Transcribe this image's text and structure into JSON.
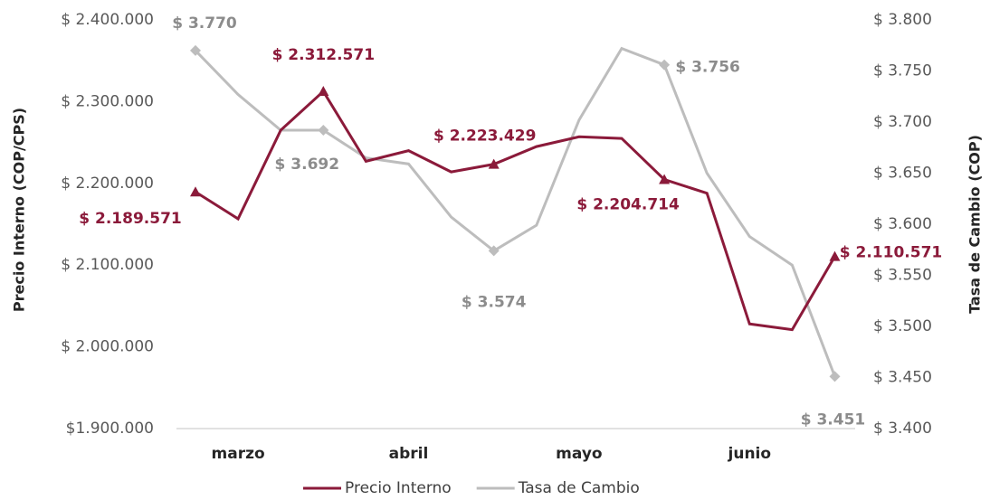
{
  "chart_data": {
    "type": "line",
    "categories": [
      null,
      "marzo",
      null,
      null,
      null,
      "abril",
      null,
      null,
      null,
      "mayo",
      null,
      null,
      null,
      "junio",
      null,
      null
    ],
    "series": [
      {
        "name": "Precio Interno",
        "color": "#8b1a3a",
        "axis": "y",
        "values": [
          2189571,
          2156600,
          2265000,
          2312571,
          2227000,
          2240000,
          2214000,
          2223429,
          2245000,
          2257000,
          2255000,
          2204714,
          2188000,
          2028000,
          2021000,
          2110571
        ],
        "value_labels": [
          "$ 2.189.571",
          null,
          null,
          "$ 2.312.571",
          null,
          null,
          null,
          "$ 2.223.429",
          null,
          null,
          null,
          "$ 2.204.714",
          null,
          null,
          null,
          "$ 2.110.571"
        ]
      },
      {
        "name": "Tasa de Cambio",
        "color": "#bdbdbd",
        "axis": "y2",
        "values": [
          3770,
          3727,
          3692,
          3692,
          3665,
          3659,
          3607,
          3574,
          3599,
          3702,
          3772,
          3756,
          3650,
          3588,
          3560,
          3451
        ],
        "value_labels": [
          "$ 3.770",
          null,
          null,
          "$ 3.692",
          null,
          null,
          null,
          "$ 3.574",
          null,
          null,
          null,
          "$ 3.756",
          null,
          null,
          null,
          "$ 3.451"
        ]
      }
    ],
    "ylabel": "Precio Interno (COP/CPS)",
    "y2label": "Tasa de Cambio (COP)",
    "ylim": [
      1900000,
      2400000
    ],
    "yticks": [
      {
        "value": 1900000,
        "label": "$1.900.000"
      },
      {
        "value": 2000000,
        "label": "$ 2.000.000"
      },
      {
        "value": 2100000,
        "label": "$ 2.100.000"
      },
      {
        "value": 2200000,
        "label": "$ 2.200.000"
      },
      {
        "value": 2300000,
        "label": "$ 2.300.000"
      },
      {
        "value": 2400000,
        "label": "$ 2.400.000"
      }
    ],
    "y2lim": [
      3400,
      3800
    ],
    "y2ticks": [
      {
        "value": 3400,
        "label": "$ 3.400"
      },
      {
        "value": 3450,
        "label": "$ 3.450"
      },
      {
        "value": 3500,
        "label": "$ 3.500"
      },
      {
        "value": 3550,
        "label": "$ 3.550"
      },
      {
        "value": 3600,
        "label": "$ 3.600"
      },
      {
        "value": 3650,
        "label": "$ 3.650"
      },
      {
        "value": 3700,
        "label": "$ 3.700"
      },
      {
        "value": 3750,
        "label": "$ 3.750"
      },
      {
        "value": 3800,
        "label": "$ 3.800"
      }
    ],
    "grid": false,
    "legend": "bottom"
  }
}
